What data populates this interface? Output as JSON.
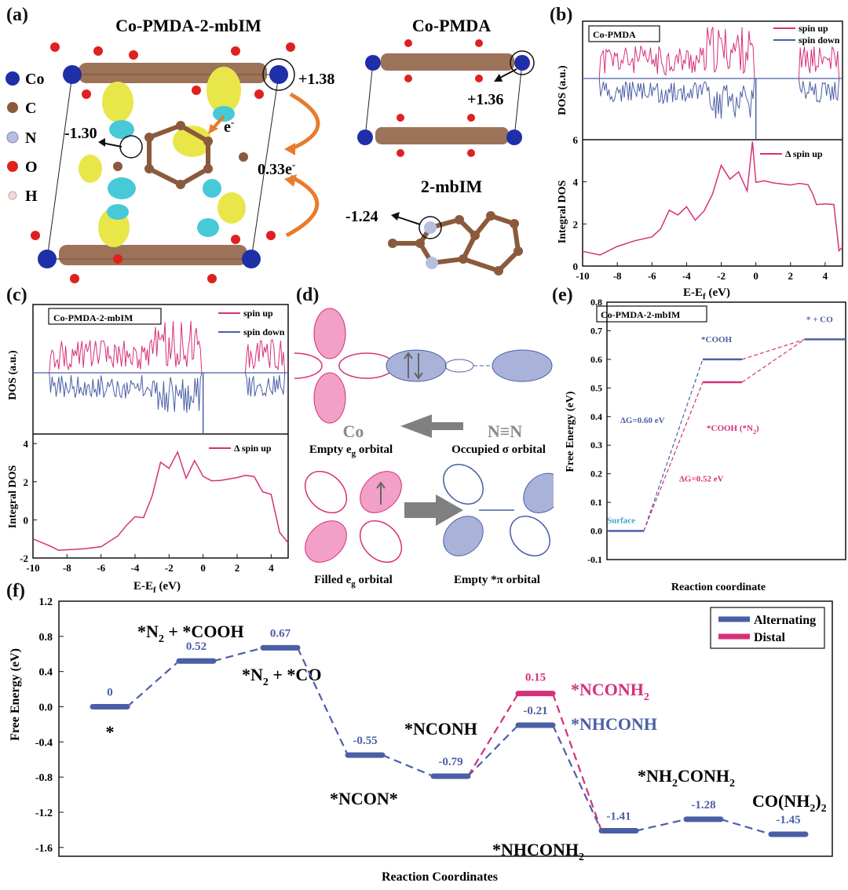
{
  "panels": {
    "a": "(a)",
    "b": "(b)",
    "c": "(c)",
    "d": "(d)",
    "e": "(e)",
    "f": "(f)"
  },
  "panel_a": {
    "title_left": "Co-PMDA-2-mbIM",
    "title_right_top": "Co-PMDA",
    "title_right_bottom": "2-mbIM",
    "legend": [
      {
        "label": "Co",
        "color": "#1f2fa8"
      },
      {
        "label": "C",
        "color": "#8b5a3c"
      },
      {
        "label": "N",
        "color": "#b6bfe0"
      },
      {
        "label": "O",
        "color": "#e02020"
      },
      {
        "label": "H",
        "color": "#f3d9d9"
      }
    ],
    "charge_co": "+1.38",
    "charge_n": "-1.30",
    "transfer": "0.33e",
    "transfer_sup": "-",
    "electron": "e",
    "electron_sup": "-",
    "charge_co_pmda": "+1.36",
    "charge_mbim": "-1.24"
  },
  "panel_d": {
    "co": "Co",
    "n2": "N≡N",
    "empty_eg": "Empty e",
    "eg_sub": "g",
    "orbital": " orbital",
    "occupied_sigma": "Occupied σ orbital",
    "filled_eg": "Filled e",
    "empty_pi": "Empty *π orbital"
  },
  "chart_data": [
    {
      "id": "b",
      "type": "line",
      "label": "Co-PMDA",
      "top": {
        "ylabel": "DOS (a.u.)",
        "series": [
          {
            "name": "spin up",
            "color": "#d6307a"
          },
          {
            "name": "spin down",
            "color": "#4b5fa6"
          }
        ]
      },
      "bottom": {
        "ylabel": "Integral DOS",
        "series_name": "Δ spin up",
        "color": "#d6307a",
        "ylim": [
          0,
          6
        ],
        "yticks": [
          0,
          2,
          4,
          6
        ],
        "x": [
          -10,
          -9,
          -8,
          -7,
          -6,
          -5.5,
          -5,
          -4.5,
          -4,
          -3.5,
          -3,
          -2.5,
          -2,
          -1.5,
          -1,
          -0.5,
          -0.2,
          0,
          0.5,
          1,
          2,
          2.5,
          3,
          3.3,
          3.5,
          4,
          4.5,
          4.8,
          5
        ],
        "y": [
          0.7,
          0.75,
          0.8,
          1.0,
          1.4,
          2.0,
          2.5,
          2.3,
          2.6,
          2.0,
          2.7,
          3.2,
          4.8,
          4.1,
          4.5,
          3.8,
          5.7,
          3.8,
          3.8,
          3.8,
          3.8,
          3.8,
          3.8,
          3.6,
          2.8,
          2.8,
          2.8,
          0.8,
          0.9
        ]
      },
      "xlabel": "E-E",
      "xlabel_sub": "f",
      "xlabel_unit": " (eV)",
      "xlim": [
        -10,
        5
      ],
      "xticks": [
        -10,
        -8,
        -6,
        -4,
        -2,
        0,
        2,
        4
      ]
    },
    {
      "id": "c",
      "type": "line",
      "label": "Co-PMDA-2-mbIM",
      "top": {
        "ylabel": "DOS (a.u.)",
        "series": [
          {
            "name": "spin up",
            "color": "#d6307a"
          },
          {
            "name": "spin down",
            "color": "#4b5fa6"
          }
        ]
      },
      "bottom": {
        "ylabel": "Integral DOS",
        "series_name": "Δ spin up",
        "color": "#d6307a",
        "ylim": [
          -2,
          4.5
        ],
        "yticks": [
          -2,
          0,
          2,
          4
        ],
        "x": [
          -10,
          -9,
          -8.5,
          -8,
          -7,
          -6,
          -5,
          -4.5,
          -4,
          -3.5,
          -3,
          -2.5,
          -2,
          -1.5,
          -1,
          -0.5,
          0,
          0.5,
          1,
          2,
          2.5,
          3,
          3.5,
          4,
          4.5,
          5
        ],
        "y": [
          -1.0,
          -1.3,
          -1.6,
          -1.5,
          -1.4,
          -1.2,
          -0.8,
          -0.3,
          0.0,
          0.3,
          1.2,
          3.2,
          2.5,
          3.4,
          2.2,
          3.3,
          2.2,
          2.2,
          2.2,
          2.2,
          2.2,
          2.2,
          1.3,
          1.3,
          -0.8,
          -1.2
        ]
      },
      "xlabel": "E-E",
      "xlabel_sub": "f",
      "xlabel_unit": " (eV)",
      "xlim": [
        -10,
        5
      ],
      "xticks": [
        -10,
        -8,
        -6,
        -4,
        -2,
        0,
        2,
        4
      ]
    },
    {
      "id": "e",
      "type": "line",
      "label": "Co-PMDA-2-mbIM",
      "ylabel": "Free Energy  (eV)",
      "xlabel": "Reaction coordinate",
      "ylim": [
        -0.1,
        0.8
      ],
      "yticks": [
        -0.1,
        0.0,
        0.1,
        0.2,
        0.3,
        0.4,
        0.5,
        0.6,
        0.7,
        0.8
      ],
      "states": [
        {
          "name": "Surface",
          "value": 0.0,
          "pos": 0,
          "color": "#4b5fa6",
          "label_color": "#3aa6c8"
        },
        {
          "name": "*COOH",
          "value": 0.6,
          "pos": 1,
          "color": "#4b5fa6"
        },
        {
          "name": "*COOH (*N",
          "sub": "2",
          "close": ")",
          "value": 0.52,
          "pos": 1,
          "color": "#d6307a"
        },
        {
          "name": "* + CO",
          "value": 0.67,
          "pos": 2,
          "color": "#4b5fa6"
        }
      ],
      "annotations": [
        {
          "text": "ΔG=0.60 eV",
          "color": "#4b5fa6"
        },
        {
          "text": "ΔG=0.52 eV",
          "color": "#d6307a"
        }
      ]
    },
    {
      "id": "f",
      "type": "line",
      "ylabel": "Free Energy (eV)",
      "xlabel": "Reaction Coordinates",
      "ylim": [
        -1.7,
        1.2
      ],
      "yticks": [
        1.2,
        0.8,
        0.4,
        0.0,
        -0.4,
        -0.8,
        -1.2,
        -1.6
      ],
      "series": [
        {
          "name": "Alternating",
          "color": "#4b5fa6",
          "values": [
            0,
            0.52,
            0.67,
            -0.55,
            -0.79,
            -0.21,
            -1.41,
            -1.28,
            -1.45
          ]
        },
        {
          "name": "Distal",
          "color": "#d6307a",
          "values": [
            null,
            null,
            null,
            null,
            -0.79,
            0.15,
            -1.41,
            null,
            null
          ]
        }
      ],
      "value_labels": [
        "0",
        "0.52",
        "0.67",
        "-0.55",
        "-0.79",
        "-0.21",
        "-1.41",
        "-1.28",
        "-1.45"
      ],
      "distal_label": "0.15",
      "species": {
        "s0": "*",
        "s1a": "*N",
        "s1b": "2",
        "s1c": " + *COOH",
        "s2a": "*N",
        "s2b": "2",
        "s2c": " + *CO",
        "s3": "*NCON*",
        "s4": "*NCONH",
        "s5d_a": "*NCONH",
        "s5d_b": "2",
        "s5a": "*NHCONH",
        "s6a": "*NHCONH",
        "s6b": "2",
        "s7a": "*NH",
        "s7b": "2",
        "s7c": "CONH",
        "s7d": "2",
        "s8a": "CO(NH",
        "s8b": "2",
        "s8c": ")",
        "s8d": "2"
      }
    }
  ]
}
